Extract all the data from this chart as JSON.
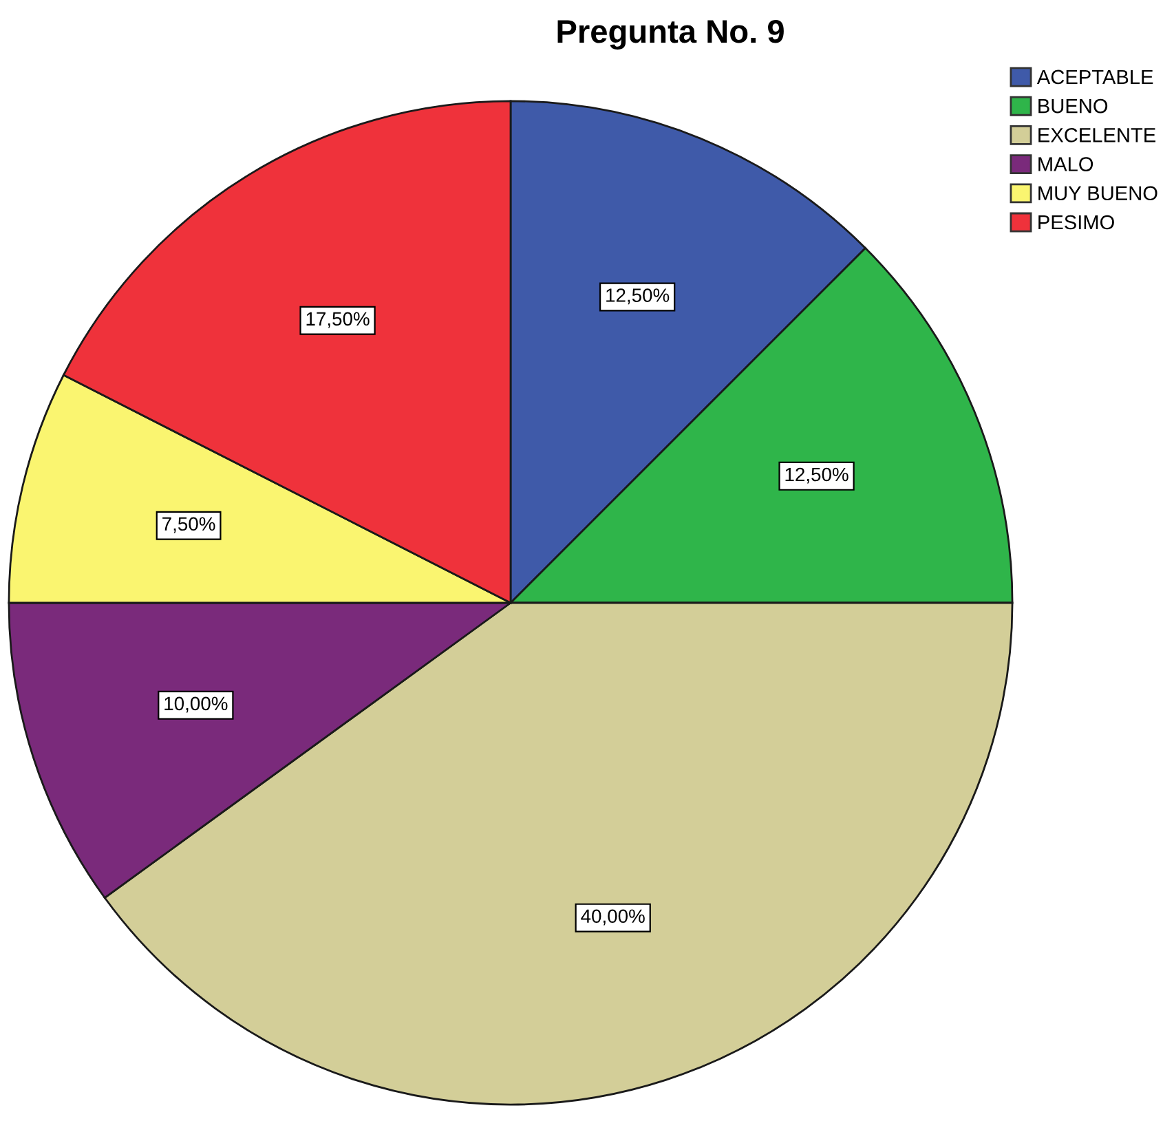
{
  "chart_data": {
    "type": "pie",
    "title": "Pregunta No. 9",
    "categories": [
      "ACEPTABLE",
      "BUENO",
      "EXCELENTE",
      "MALO",
      "MUY BUENO",
      "PESIMO"
    ],
    "values": [
      12.5,
      12.5,
      40,
      10,
      7.5,
      17.5
    ],
    "colors": [
      "#3f5aa9",
      "#2fb54a",
      "#d3ce98",
      "#7a2a7b",
      "#faf570",
      "#ef323b"
    ],
    "value_labels": [
      "12,50%",
      "12,50%",
      "40,00%",
      "10,00%",
      "7,50%",
      "17,50%"
    ],
    "legend": "top right"
  }
}
